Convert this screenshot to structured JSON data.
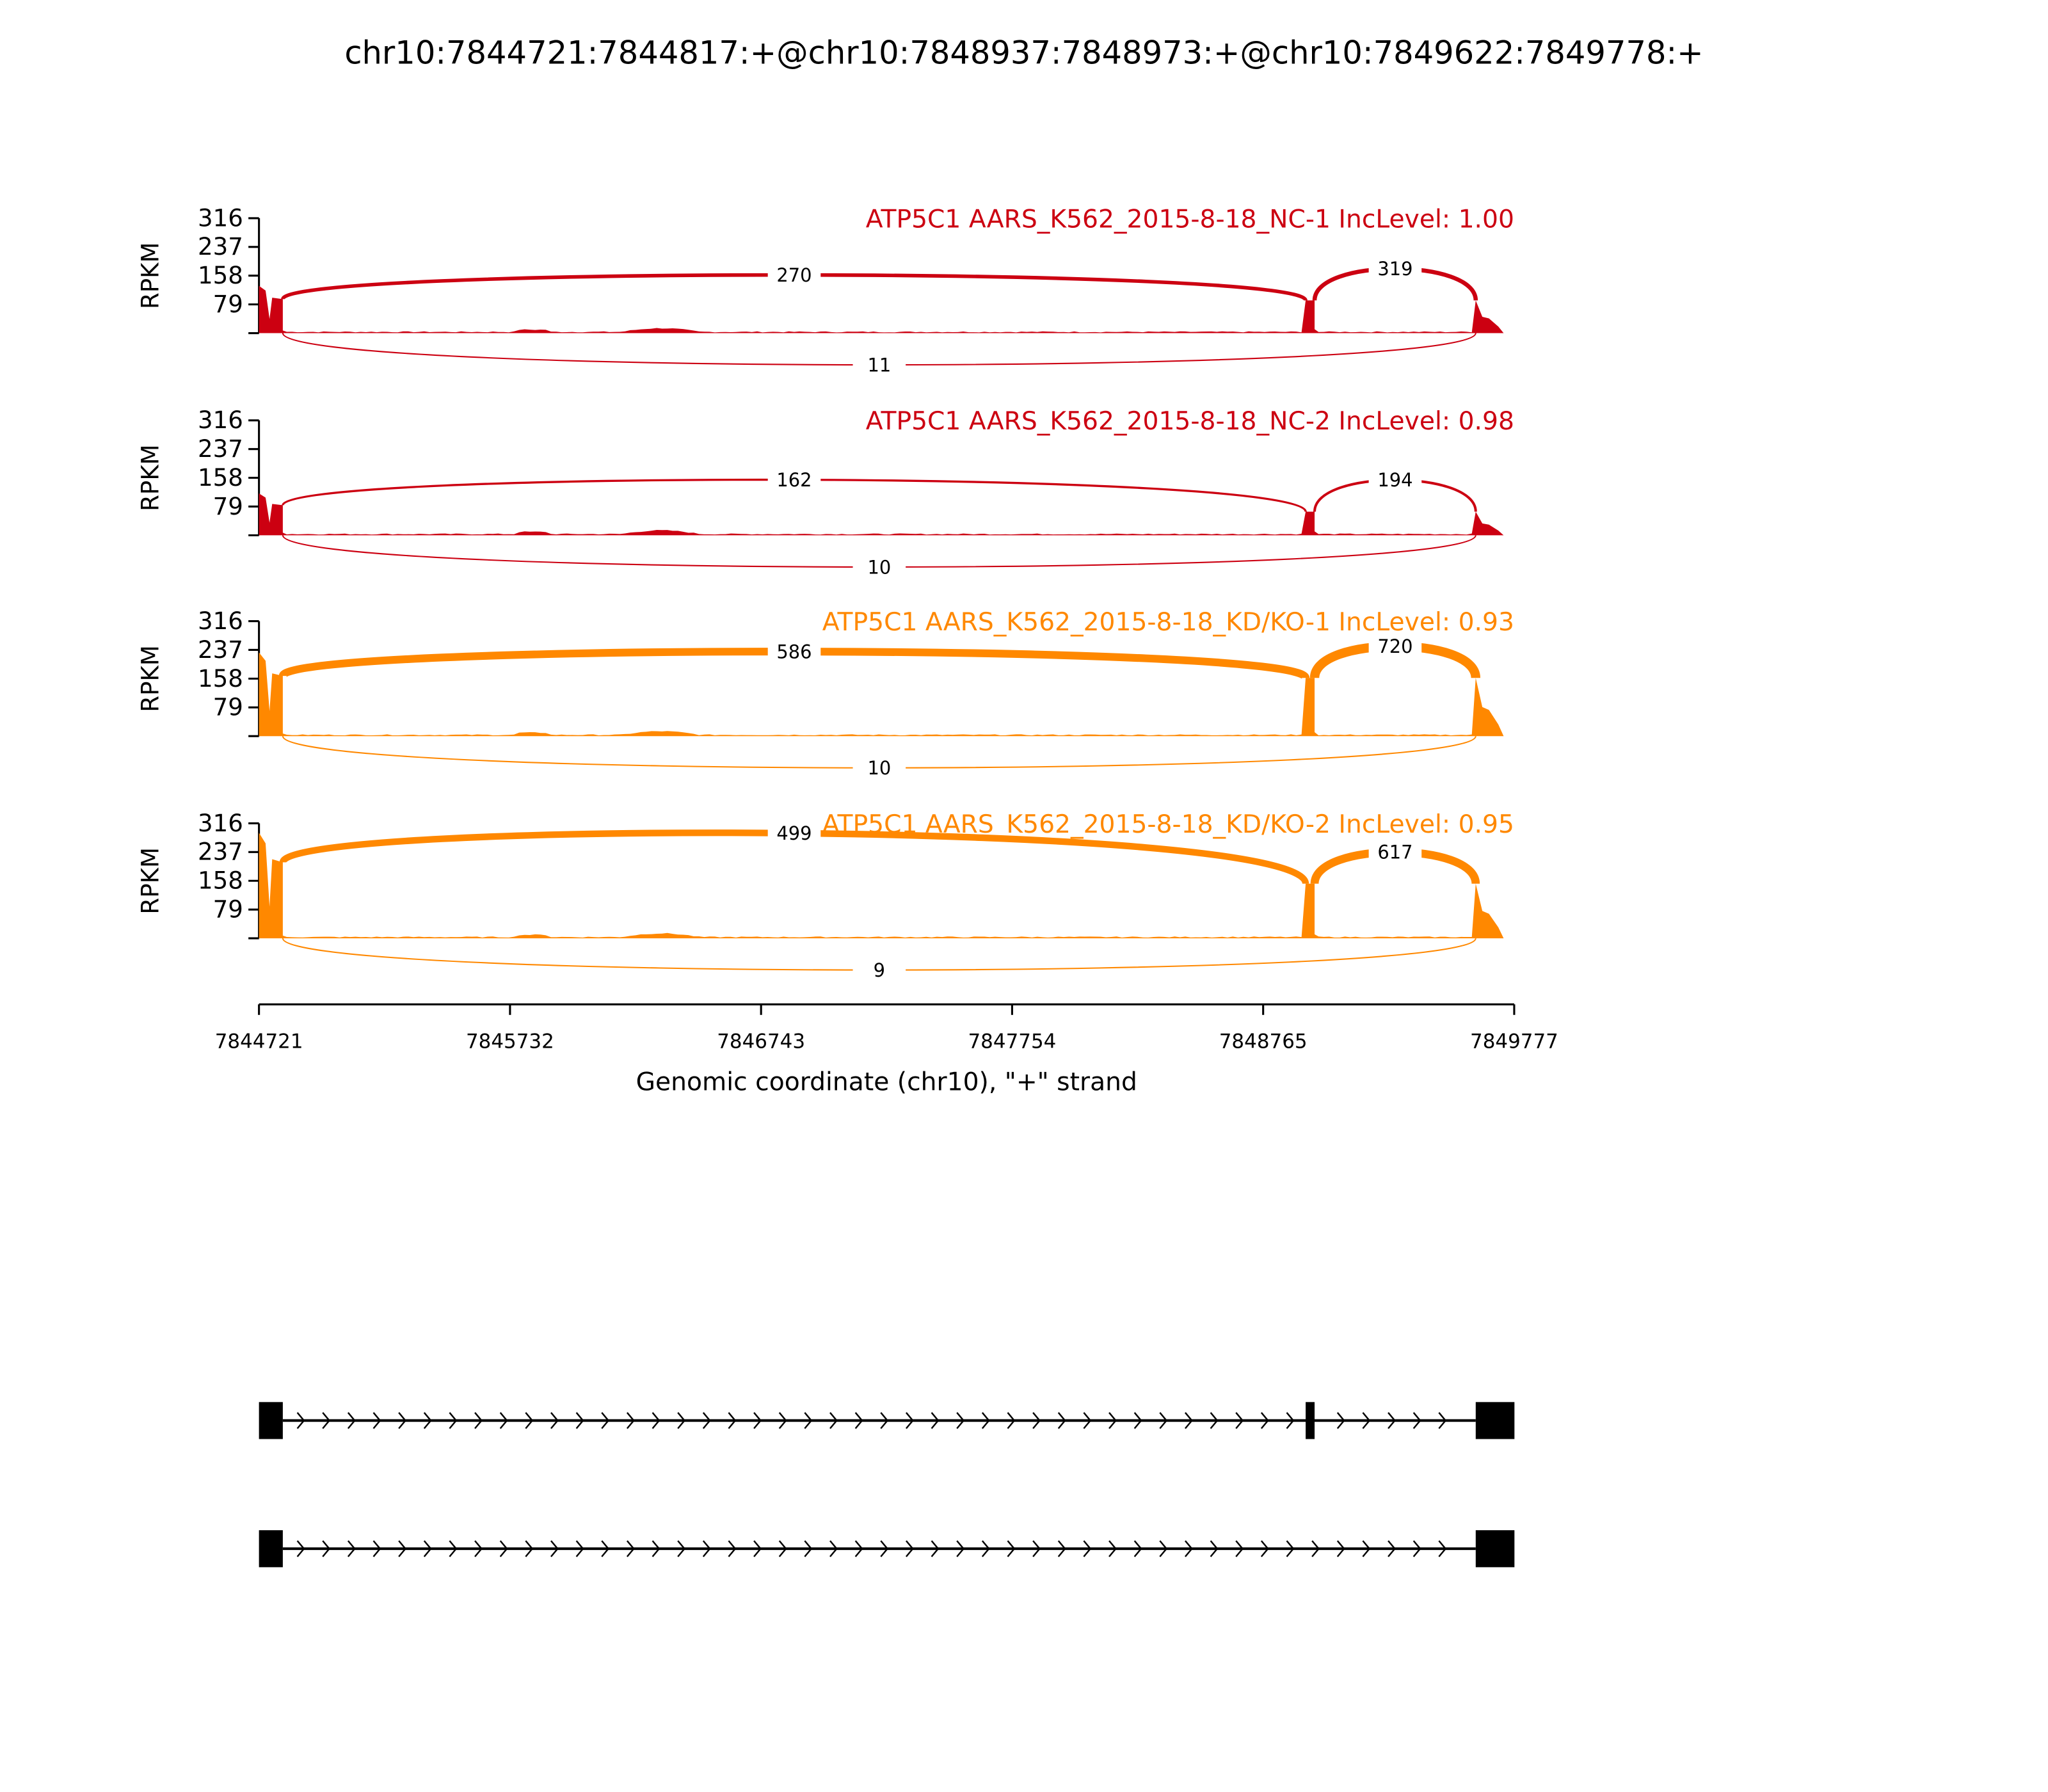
{
  "chart_data": {
    "type": "area",
    "title": "chr10:7844721:7844817:+@chr10:7848937:7848973:+@chr10:7849622:7849778:+",
    "xlabel": "Genomic coordinate (chr10), \"+\" strand",
    "ylabel": "RPKM",
    "xlim": [
      7844721,
      7849777
    ],
    "ylim": [
      0,
      316
    ],
    "x_ticks": [
      "7844721",
      "7845732",
      "7846743",
      "7847754",
      "7848765",
      "7849777"
    ],
    "y_ticks": [
      "316",
      "237",
      "158",
      "79"
    ],
    "exons": [
      [
        7844721,
        7844817
      ],
      [
        7848937,
        7848973
      ],
      [
        7849622,
        7849778
      ]
    ],
    "panels": [
      {
        "title": "ATP5C1 AARS_K562_2015-8-18_NC-1 IncLevel: 1.00",
        "color": "#cc0011",
        "exon_rpkm": [
          130,
          90,
          90
        ],
        "junctions": {
          "upstream": "270",
          "downstream": "319",
          "skip": "11"
        }
      },
      {
        "title": "ATP5C1 AARS_K562_2015-8-18_NC-2 IncLevel: 0.98",
        "color": "#cc0011",
        "exon_rpkm": [
          115,
          65,
          65
        ],
        "junctions": {
          "upstream": "162",
          "downstream": "194",
          "skip": "10"
        }
      },
      {
        "title": "ATP5C1 AARS_K562_2015-8-18_KD/KO-1 IncLevel: 0.93",
        "color": "#ff8800",
        "exon_rpkm": [
          230,
          160,
          160
        ],
        "junctions": {
          "upstream": "586",
          "downstream": "720",
          "skip": "10"
        }
      },
      {
        "title": "ATP5C1 AARS_K562_2015-8-18_KD/KO-2 IncLevel: 0.95",
        "color": "#ff8800",
        "exon_rpkm": [
          290,
          150,
          150
        ],
        "junctions": {
          "upstream": "499",
          "downstream": "617",
          "skip": "9"
        }
      }
    ],
    "isoforms": [
      {
        "exons": [
          [
            7844721,
            7844817
          ],
          [
            7848937,
            7848973
          ],
          [
            7849622,
            7849778
          ]
        ]
      },
      {
        "exons": [
          [
            7844721,
            7844817
          ],
          [
            7849622,
            7849778
          ]
        ]
      }
    ]
  }
}
